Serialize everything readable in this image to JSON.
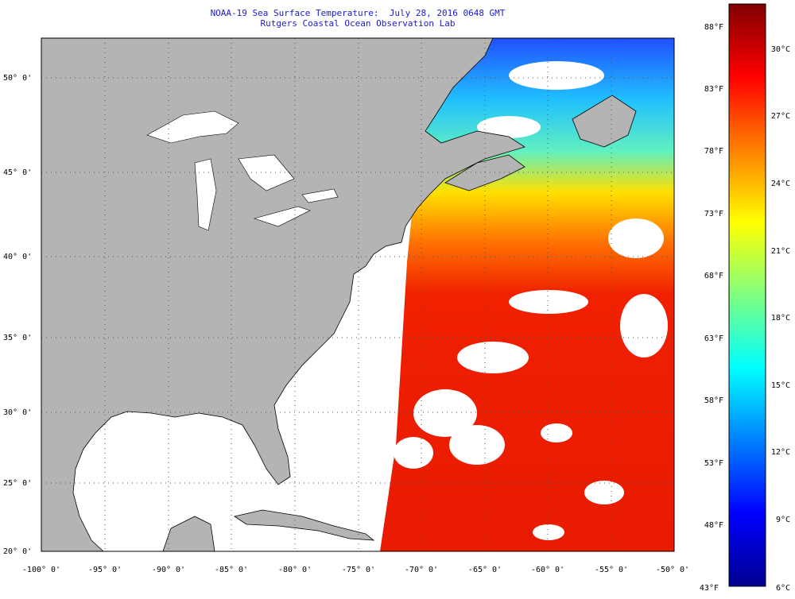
{
  "header": {
    "title_line1": "NOAA-19 Sea Surface Temperature:  July 28, 2016 0648 GMT",
    "title_line2": "Rutgers Coastal Ocean Observation Lab"
  },
  "map": {
    "lat_labels": [
      "50° 0'",
      "45° 0'",
      "40° 0'",
      "35° 0'",
      "30° 0'",
      "25° 0'",
      "20° 0'"
    ],
    "lon_labels": [
      "-100° 0'",
      "-95° 0'",
      "-90° 0'",
      "-85° 0'",
      "-80° 0'",
      "-75° 0'",
      "-70° 0'",
      "-65° 0'",
      "-60° 0'",
      "-55° 0'",
      "-50° 0'"
    ],
    "land_color": "#b4b4b4",
    "nodata_color": "#ffffff"
  },
  "colorbar": {
    "fahrenheit_labels": [
      "88°F",
      "83°F",
      "78°F",
      "73°F",
      "68°F",
      "63°F",
      "58°F",
      "53°F",
      "48°F",
      "43°F"
    ],
    "celsius_labels": [
      "30°C",
      "27°C",
      "24°C",
      "21°C",
      "18°C",
      "15°C",
      "12°C",
      "9°C",
      "6°C"
    ],
    "gradient_stops": [
      "#00008f",
      "#0000ff",
      "#0080ff",
      "#00ffff",
      "#80ff80",
      "#ffff00",
      "#ff8000",
      "#ff0000",
      "#800000"
    ]
  }
}
